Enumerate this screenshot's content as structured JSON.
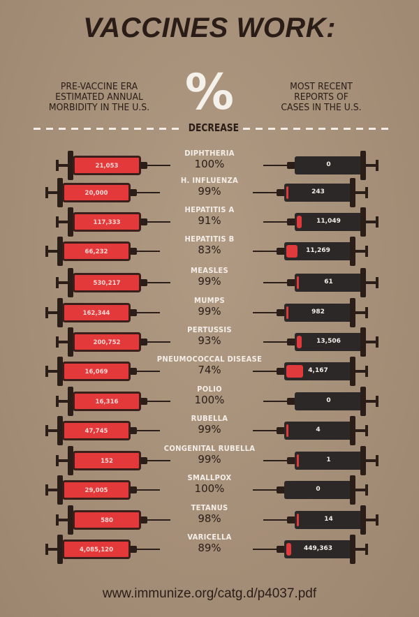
{
  "title": "VACCINES WORK:",
  "header": {
    "left": [
      "PRE-VACCINE ERA",
      "ESTIMATED ANNUAL",
      "MORBIDITY IN THE U.S."
    ],
    "center_symbol": "%",
    "center_label": "DECREASE",
    "right": [
      "MOST RECENT",
      "REPORTS OF",
      "CASES IN THE U.S."
    ]
  },
  "colors": {
    "background": "#a58e77",
    "pre_vaccine_red": "#e3393b",
    "recent_dark": "#2b2827",
    "text_dark": "#2a1c17",
    "label_light": "#f3eee7"
  },
  "rows": [
    {
      "disease": "DIPHTHERIA",
      "decrease": "100%",
      "pre_vaccine": "21,053",
      "recent": "0",
      "fill": 0
    },
    {
      "disease": "H. INFLUENZA",
      "decrease": "99%",
      "pre_vaccine": "20,000",
      "recent": "243",
      "fill": 3
    },
    {
      "disease": "HEPATITIS A",
      "decrease": "91%",
      "pre_vaccine": "117,333",
      "recent": "11,049",
      "fill": 7
    },
    {
      "disease": "HEPATITIS B",
      "decrease": "83%",
      "pre_vaccine": "66,232",
      "recent": "11,269",
      "fill": 16
    },
    {
      "disease": "MEASLES",
      "decrease": "99%",
      "pre_vaccine": "530,217",
      "recent": "61",
      "fill": 3
    },
    {
      "disease": "MUMPS",
      "decrease": "99%",
      "pre_vaccine": "162,344",
      "recent": "982",
      "fill": 3
    },
    {
      "disease": "PERTUSSIS",
      "decrease": "93%",
      "pre_vaccine": "200,752",
      "recent": "13,506",
      "fill": 7
    },
    {
      "disease": "PNEUMOCOCCAL DISEASE",
      "decrease": "74%",
      "pre_vaccine": "16,069",
      "recent": "4,167",
      "fill": 24
    },
    {
      "disease": "POLIO",
      "decrease": "100%",
      "pre_vaccine": "16,316",
      "recent": "0",
      "fill": 0
    },
    {
      "disease": "RUBELLA",
      "decrease": "99%",
      "pre_vaccine": "47,745",
      "recent": "4",
      "fill": 3
    },
    {
      "disease": "CONGENITAL RUBELLA",
      "decrease": "99%",
      "pre_vaccine": "152",
      "recent": "1",
      "fill": 3
    },
    {
      "disease": "SMALLPOX",
      "decrease": "100%",
      "pre_vaccine": "29,005",
      "recent": "0",
      "fill": 0
    },
    {
      "disease": "TETANUS",
      "decrease": "98%",
      "pre_vaccine": "580",
      "recent": "14",
      "fill": 3
    },
    {
      "disease": "VARICELLA",
      "decrease": "89%",
      "pre_vaccine": "4,085,120",
      "recent": "449,363",
      "fill": 7
    }
  ],
  "source": "www.immunize.org/catg.d/p4037.pdf"
}
